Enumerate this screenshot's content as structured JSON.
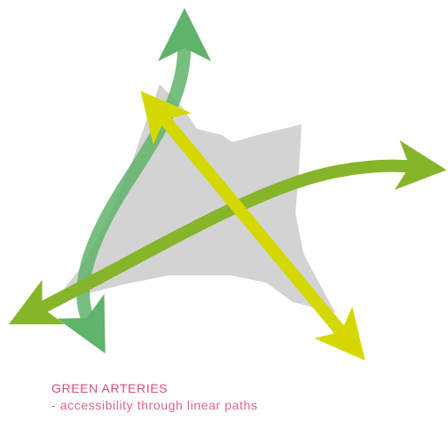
{
  "caption": {
    "title": "GREEN ARTERIES",
    "subtitle": "- accessibility through linear paths"
  },
  "colors": {
    "area": "#d3d3d3",
    "arrow_green_light": "#5fb36a",
    "arrow_green_dark": "#86b529",
    "arrow_yellow": "#d4d800",
    "caption": "#d24d7a"
  },
  "icons": [
    "double-headed-arrow",
    "double-headed-arrow",
    "double-headed-arrow"
  ]
}
